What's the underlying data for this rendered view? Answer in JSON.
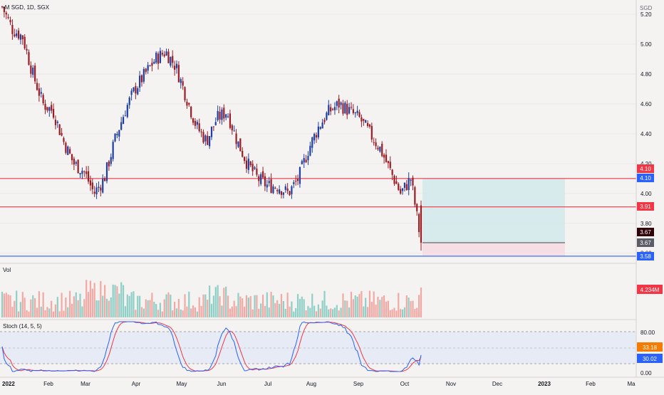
{
  "header": {
    "symbol_line": "•M SGD, 1D, SGX"
  },
  "price_axis": {
    "unit": "SGD",
    "ticks": [
      "5.20",
      "5.00",
      "4.80",
      "4.60",
      "4.40",
      "4.20",
      "4.00",
      "3.80",
      "3.60"
    ]
  },
  "volume_pane": {
    "label": "Vol",
    "last_value": "4.234M"
  },
  "stoch_pane": {
    "label": "Stoch (14, 5, 5)",
    "ticks": [
      "80.00",
      "0.00"
    ],
    "k_value": "33.18",
    "d_value": "30.02"
  },
  "time_axis": {
    "labels": [
      "2022",
      "Feb",
      "Mar",
      "Apr",
      "May",
      "Jun",
      "Jul",
      "Aug",
      "Sep",
      "Oct",
      "Nov",
      "Dec",
      "2023",
      "Feb",
      "Ma"
    ]
  },
  "price_badges": [
    {
      "text": "4.10",
      "color": "#f23645"
    },
    {
      "text": "4.10",
      "color": "#2962ff"
    },
    {
      "text": "3.91",
      "color": "#f23645"
    },
    {
      "text": "3.67",
      "color": "#300008"
    },
    {
      "text": "3.67",
      "color": "#5a5d66"
    },
    {
      "text": "3.58",
      "color": "#2962ff"
    }
  ],
  "horizontal_lines": [
    {
      "price": 4.1,
      "color": "#f23645"
    },
    {
      "price": 3.91,
      "color": "#f23645"
    },
    {
      "price": 3.58,
      "color": "#2962ff"
    }
  ],
  "position_tool": {
    "entry": 3.67,
    "target": 4.1,
    "stop": 3.58
  },
  "chart_data": {
    "type": "candlestick",
    "title": "",
    "ylabel": "SGD",
    "ylim": [
      3.52,
      5.3
    ],
    "x_labels": [
      "2022",
      "Feb",
      "Mar",
      "Apr",
      "May",
      "Jun",
      "Jul",
      "Aug",
      "Sep",
      "Oct",
      "Nov",
      "Dec",
      "2023",
      "Feb",
      "Ma"
    ],
    "close_path": [
      [
        "Jan 3",
        5.25
      ],
      [
        "Jan 10",
        5.1
      ],
      [
        "Jan 17",
        5.05
      ],
      [
        "Jan 24",
        4.8
      ],
      [
        "Jan 31",
        4.6
      ],
      [
        "Feb 7",
        4.55
      ],
      [
        "Feb 14",
        4.35
      ],
      [
        "Feb 21",
        4.2
      ],
      [
        "Feb 28",
        4.15
      ],
      [
        "Mar 7",
        4.0
      ],
      [
        "Mar 14",
        4.1
      ],
      [
        "Mar 21",
        4.35
      ],
      [
        "Mar 28",
        4.55
      ],
      [
        "Apr 4",
        4.7
      ],
      [
        "Apr 11",
        4.8
      ],
      [
        "Apr 18",
        4.9
      ],
      [
        "Apr 25",
        4.95
      ],
      [
        "May 2",
        4.85
      ],
      [
        "May 9",
        4.65
      ],
      [
        "May 16",
        4.45
      ],
      [
        "May 23",
        4.35
      ],
      [
        "May 30",
        4.5
      ],
      [
        "Jun 6",
        4.55
      ],
      [
        "Jun 13",
        4.35
      ],
      [
        "Jun 20",
        4.2
      ],
      [
        "Jun 27",
        4.1
      ],
      [
        "Jul 4",
        4.05
      ],
      [
        "Jul 11",
        4.05
      ],
      [
        "Jul 18",
        4.0
      ],
      [
        "Jul 25",
        4.1
      ],
      [
        "Aug 1",
        4.3
      ],
      [
        "Aug 8",
        4.45
      ],
      [
        "Aug 15",
        4.55
      ],
      [
        "Aug 22",
        4.6
      ],
      [
        "Aug 29",
        4.55
      ],
      [
        "Sep 5",
        4.5
      ],
      [
        "Sep 12",
        4.4
      ],
      [
        "Sep 19",
        4.3
      ],
      [
        "Sep 26",
        4.15
      ],
      [
        "Oct 3",
        4.0
      ],
      [
        "Oct 10",
        4.1
      ],
      [
        "Oct 14",
        3.67
      ]
    ],
    "last_close": 3.67,
    "volume_last": "4.234M",
    "stochastic": {
      "params": [
        14,
        5,
        5
      ],
      "k": 33.18,
      "d": 30.02,
      "levels": [
        80,
        20
      ]
    }
  }
}
